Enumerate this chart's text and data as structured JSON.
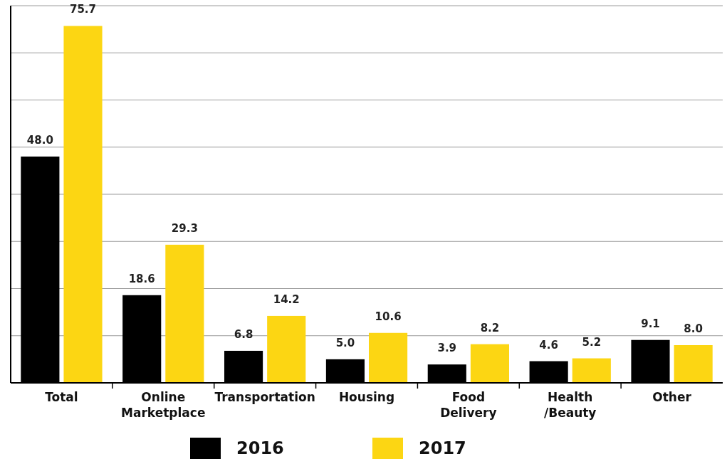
{
  "chart_data": {
    "type": "bar",
    "categories": [
      "Total",
      "Online Marketplace",
      "Transportation",
      "Housing",
      "Food Delivery",
      "Health /Beauty",
      "Other"
    ],
    "series": [
      {
        "name": "2016",
        "color": "#000000",
        "values": [
          48.0,
          18.6,
          6.8,
          5.0,
          3.9,
          4.6,
          9.1
        ],
        "value_labels": [
          "48.0",
          "18.6",
          "6.8",
          "5.0",
          "3.9",
          "4.6",
          "9.1"
        ]
      },
      {
        "name": "2017",
        "color": "#fcd613",
        "values": [
          75.7,
          29.3,
          14.2,
          10.6,
          8.2,
          5.2,
          8.0
        ],
        "value_labels": [
          "75.7",
          "29.3",
          "14.2",
          "10.6",
          "8.2",
          "5.2",
          "8.0"
        ]
      }
    ],
    "ylim": [
      0,
      80
    ],
    "yticks": [
      {
        "value": 0,
        "label": null
      },
      {
        "value": 10,
        "label": null
      },
      {
        "value": 20,
        "label": null
      },
      {
        "value": 30,
        "label": null
      },
      {
        "value": 40,
        "label": null
      },
      {
        "value": 50,
        "label": null
      },
      {
        "value": 60,
        "label": null
      },
      {
        "value": 70,
        "label": null
      },
      {
        "value": 80,
        "label": null
      }
    ],
    "grid": "y",
    "tick_labels": "x",
    "legend": "bottom"
  }
}
